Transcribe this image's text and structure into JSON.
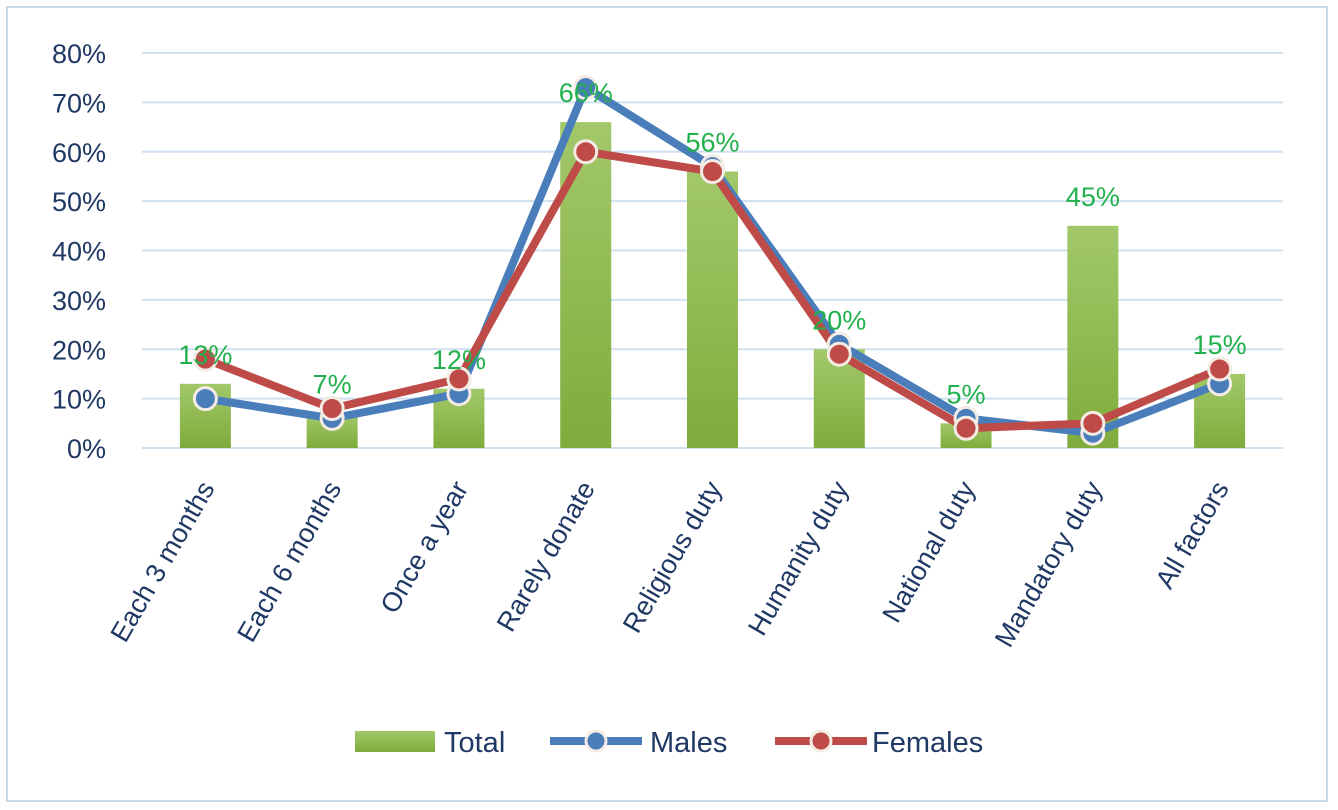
{
  "chart_data": {
    "type": "bar",
    "title": "",
    "xlabel": "",
    "ylabel": "",
    "ylim": [
      0,
      80
    ],
    "yticks": [
      "0%",
      "10%",
      "20%",
      "30%",
      "40%",
      "50%",
      "60%",
      "70%",
      "80%"
    ],
    "grid": true,
    "legend_position": "bottom",
    "categories": [
      "Each 3 months",
      "Each 6 months",
      "Once a year",
      "Rarely donate",
      "Religious duty",
      "Humanity duty",
      "National duty",
      "Mandatory duty",
      "All factors"
    ],
    "series": [
      {
        "name": "Total",
        "kind": "bar",
        "color": "#8fbc4f",
        "values": [
          13,
          7,
          12,
          66,
          56,
          20,
          5,
          45,
          15
        ],
        "labels": [
          "13%",
          "7%",
          "12%",
          "66%",
          "56%",
          "20%",
          "5%",
          "45%",
          "15%"
        ]
      },
      {
        "name": "Males",
        "kind": "line",
        "color": "#4a7ebb",
        "values": [
          10,
          6,
          11,
          73,
          57,
          21,
          6,
          3,
          13
        ]
      },
      {
        "name": "Females",
        "kind": "line",
        "color": "#be4b48",
        "values": [
          18,
          8,
          14,
          60,
          56,
          19,
          4,
          5,
          16
        ]
      }
    ]
  }
}
